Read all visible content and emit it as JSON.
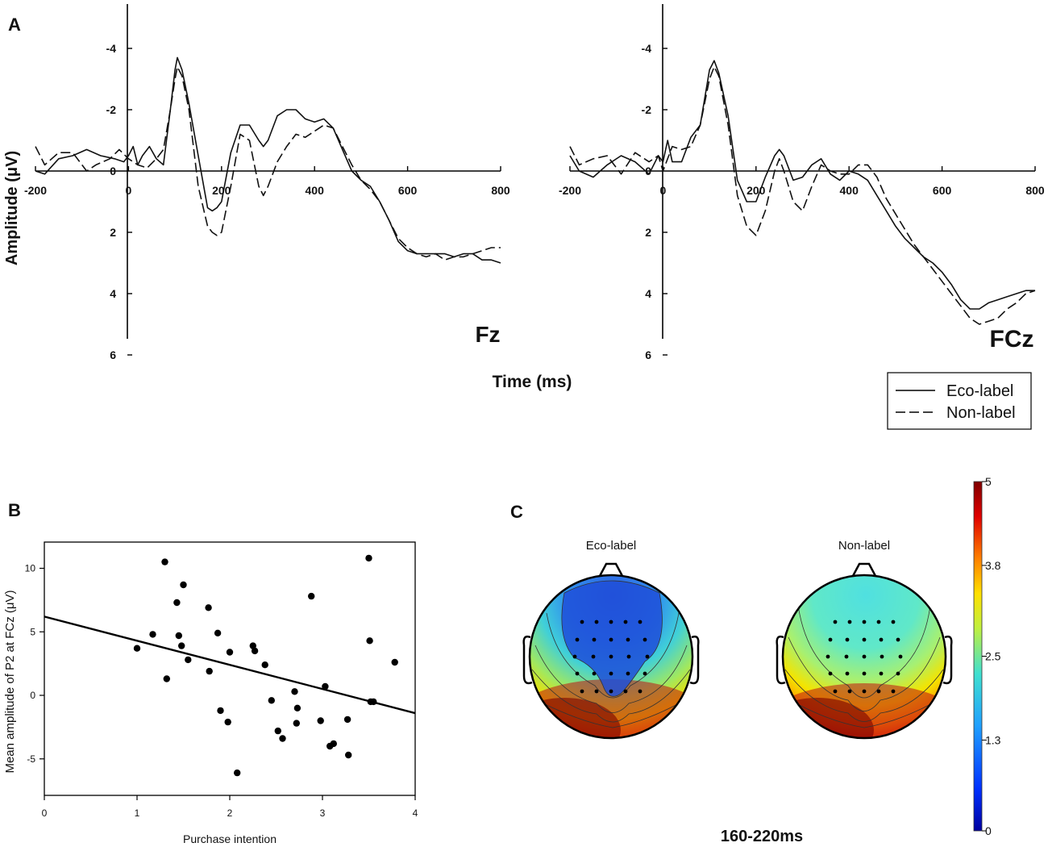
{
  "panels": {
    "a": "A",
    "b": "B",
    "c": "C"
  },
  "erp": {
    "ylabel": "Amplitude (μV)",
    "xlabel": "Time (ms)",
    "legend": [
      {
        "label": "Eco-label",
        "style": "solid"
      },
      {
        "label": "Non-label",
        "style": "dashed"
      }
    ]
  },
  "scatter": {
    "xlabel": "Purchase intention",
    "ylabel": "Mean amplitude of P2 at FCz (μV)"
  },
  "topo": {
    "maps": [
      {
        "title": "Eco-label"
      },
      {
        "title": "Non-label"
      }
    ],
    "time_window": "160-220ms",
    "colorbar_ticks": [
      "5",
      "3.8",
      "2.5",
      "1.3",
      "0"
    ]
  },
  "chart_data": [
    {
      "type": "line",
      "title": "Fz",
      "xlabel": "Time (ms)",
      "ylabel": "Amplitude (μV)",
      "xlim": [
        -200,
        800
      ],
      "ylim": [
        -5,
        6
      ],
      "y_inverted": true,
      "xticks": [
        "-200",
        "0",
        "200",
        "400",
        "600",
        "800"
      ],
      "yticks": [
        "-4",
        "-2",
        "0",
        "2",
        "4",
        "6"
      ],
      "series": [
        {
          "name": "Eco-label",
          "style": "solid",
          "x": [
            -200,
            -180,
            -150,
            -120,
            -90,
            -60,
            -30,
            -10,
            0,
            10,
            20,
            30,
            45,
            60,
            75,
            90,
            100,
            105,
            115,
            130,
            150,
            170,
            180,
            190,
            200,
            220,
            240,
            260,
            280,
            290,
            300,
            320,
            340,
            360,
            380,
            400,
            420,
            440,
            460,
            480,
            500,
            520,
            540,
            560,
            580,
            600,
            620,
            640,
            660,
            680,
            700,
            720,
            740,
            760,
            780,
            800
          ],
          "y": [
            0.0,
            0.1,
            -0.4,
            -0.5,
            -0.7,
            -0.5,
            -0.4,
            -0.3,
            -0.5,
            -0.8,
            -0.2,
            -0.5,
            -0.8,
            -0.4,
            -0.2,
            -2.0,
            -3.3,
            -3.7,
            -3.3,
            -2.2,
            -0.5,
            1.2,
            1.3,
            1.2,
            1.0,
            -0.6,
            -1.5,
            -1.5,
            -1.0,
            -0.8,
            -1.0,
            -1.8,
            -2.0,
            -2.0,
            -1.7,
            -1.6,
            -1.7,
            -1.4,
            -0.7,
            0.0,
            0.3,
            0.5,
            1.0,
            1.6,
            2.3,
            2.6,
            2.7,
            2.7,
            2.7,
            2.7,
            2.8,
            2.7,
            2.7,
            2.9,
            2.9,
            3.0
          ]
        },
        {
          "name": "Non-label",
          "style": "dashed",
          "x": [
            -200,
            -180,
            -150,
            -120,
            -90,
            -70,
            -40,
            -20,
            0,
            20,
            40,
            60,
            75,
            90,
            100,
            105,
            115,
            130,
            150,
            170,
            180,
            190,
            200,
            220,
            240,
            260,
            280,
            290,
            300,
            320,
            340,
            360,
            380,
            400,
            420,
            440,
            460,
            480,
            500,
            520,
            540,
            560,
            580,
            600,
            620,
            640,
            660,
            680,
            700,
            720,
            740,
            760,
            780,
            800
          ],
          "y": [
            -0.8,
            -0.2,
            -0.6,
            -0.6,
            0.0,
            -0.2,
            -0.4,
            -0.7,
            -0.4,
            -0.2,
            -0.1,
            -0.4,
            -0.7,
            -2.0,
            -3.0,
            -3.4,
            -3.1,
            -2.0,
            0.5,
            1.8,
            2.0,
            2.1,
            2.0,
            0.5,
            -1.2,
            -1.0,
            0.5,
            0.8,
            0.5,
            -0.3,
            -0.8,
            -1.2,
            -1.1,
            -1.3,
            -1.5,
            -1.4,
            -0.8,
            -0.2,
            0.3,
            0.6,
            1.0,
            1.6,
            2.2,
            2.5,
            2.7,
            2.8,
            2.7,
            2.9,
            2.8,
            2.8,
            2.7,
            2.6,
            2.5,
            2.5
          ]
        }
      ]
    },
    {
      "type": "line",
      "title": "FCz",
      "xlabel": "Time (ms)",
      "ylabel": "Amplitude (μV)",
      "xlim": [
        -200,
        800
      ],
      "ylim": [
        -5,
        6
      ],
      "y_inverted": true,
      "xticks": [
        "-200",
        "0",
        "200",
        "400",
        "600",
        "800"
      ],
      "yticks": [
        "-4",
        "-2",
        "0",
        "2",
        "4",
        "6"
      ],
      "series": [
        {
          "name": "Eco-label",
          "style": "solid",
          "x": [
            -200,
            -180,
            -150,
            -120,
            -90,
            -60,
            -30,
            -10,
            0,
            10,
            20,
            40,
            60,
            80,
            100,
            110,
            120,
            140,
            160,
            180,
            200,
            220,
            240,
            250,
            260,
            280,
            300,
            320,
            340,
            360,
            380,
            400,
            420,
            440,
            460,
            480,
            500,
            520,
            540,
            560,
            580,
            600,
            620,
            640,
            660,
            680,
            700,
            720,
            740,
            760,
            780,
            800
          ],
          "y": [
            -0.5,
            0.0,
            0.2,
            -0.2,
            -0.5,
            -0.3,
            0.1,
            -0.5,
            -0.3,
            -1.0,
            -0.3,
            -0.3,
            -1.1,
            -1.5,
            -3.3,
            -3.6,
            -3.2,
            -1.8,
            0.3,
            1.0,
            1.0,
            0.2,
            -0.5,
            -0.7,
            -0.5,
            0.3,
            0.2,
            -0.2,
            -0.4,
            0.1,
            0.3,
            0.0,
            0.1,
            0.3,
            0.8,
            1.3,
            1.8,
            2.2,
            2.5,
            2.8,
            3.0,
            3.3,
            3.7,
            4.2,
            4.5,
            4.5,
            4.3,
            4.2,
            4.1,
            4.0,
            3.9,
            3.9
          ]
        },
        {
          "name": "Non-label",
          "style": "dashed",
          "x": [
            -200,
            -180,
            -150,
            -120,
            -90,
            -60,
            -30,
            -10,
            0,
            20,
            40,
            60,
            80,
            100,
            110,
            120,
            140,
            160,
            180,
            200,
            220,
            240,
            250,
            260,
            280,
            300,
            320,
            340,
            360,
            380,
            400,
            420,
            440,
            460,
            480,
            500,
            520,
            540,
            560,
            580,
            600,
            620,
            640,
            660,
            680,
            700,
            720,
            740,
            760,
            780,
            800
          ],
          "y": [
            -0.8,
            -0.2,
            -0.4,
            -0.5,
            0.1,
            -0.6,
            -0.3,
            -0.5,
            0.0,
            -0.8,
            -0.7,
            -0.8,
            -1.5,
            -3.0,
            -3.4,
            -3.1,
            -1.5,
            0.8,
            1.8,
            2.1,
            1.3,
            0.0,
            -0.4,
            0.0,
            1.0,
            1.3,
            0.5,
            -0.2,
            0.0,
            0.1,
            0.1,
            -0.2,
            -0.2,
            0.2,
            0.9,
            1.4,
            1.9,
            2.4,
            2.8,
            3.2,
            3.6,
            4.0,
            4.4,
            4.8,
            5.0,
            4.9,
            4.8,
            4.5,
            4.3,
            4.0,
            3.9
          ]
        }
      ]
    },
    {
      "type": "scatter",
      "title": "",
      "xlabel": "Purchase intention",
      "ylabel": "Mean amplitude of P2 at FCz (μV)",
      "xlim": [
        0,
        4
      ],
      "ylim": [
        -8,
        12
      ],
      "xticks": [
        "0",
        "1",
        "2",
        "3",
        "4"
      ],
      "yticks": [
        "-5",
        "0",
        "5",
        "10"
      ],
      "regression": {
        "x": [
          0,
          4
        ],
        "y": [
          6.2,
          -1.4
        ]
      },
      "x": [
        1.0,
        1.17,
        1.3,
        1.32,
        1.43,
        1.45,
        1.48,
        1.5,
        1.55,
        1.77,
        1.78,
        1.87,
        1.9,
        1.98,
        2.0,
        2.08,
        2.25,
        2.27,
        2.38,
        2.45,
        2.52,
        2.57,
        2.7,
        2.72,
        2.73,
        2.88,
        2.98,
        3.03,
        3.08,
        3.12,
        3.27,
        3.28,
        3.5,
        3.51,
        3.52,
        3.55,
        3.78
      ],
      "y": [
        3.7,
        4.8,
        10.5,
        1.3,
        7.3,
        4.7,
        3.9,
        8.7,
        2.8,
        6.9,
        1.9,
        4.9,
        -1.2,
        -2.1,
        3.4,
        -6.1,
        3.9,
        3.5,
        2.4,
        -0.4,
        -2.8,
        -3.4,
        0.3,
        -2.2,
        -1.0,
        7.8,
        -2.0,
        0.7,
        -4.0,
        -3.8,
        -1.9,
        -4.7,
        10.8,
        4.3,
        -0.5,
        -0.5,
        2.6
      ]
    }
  ]
}
